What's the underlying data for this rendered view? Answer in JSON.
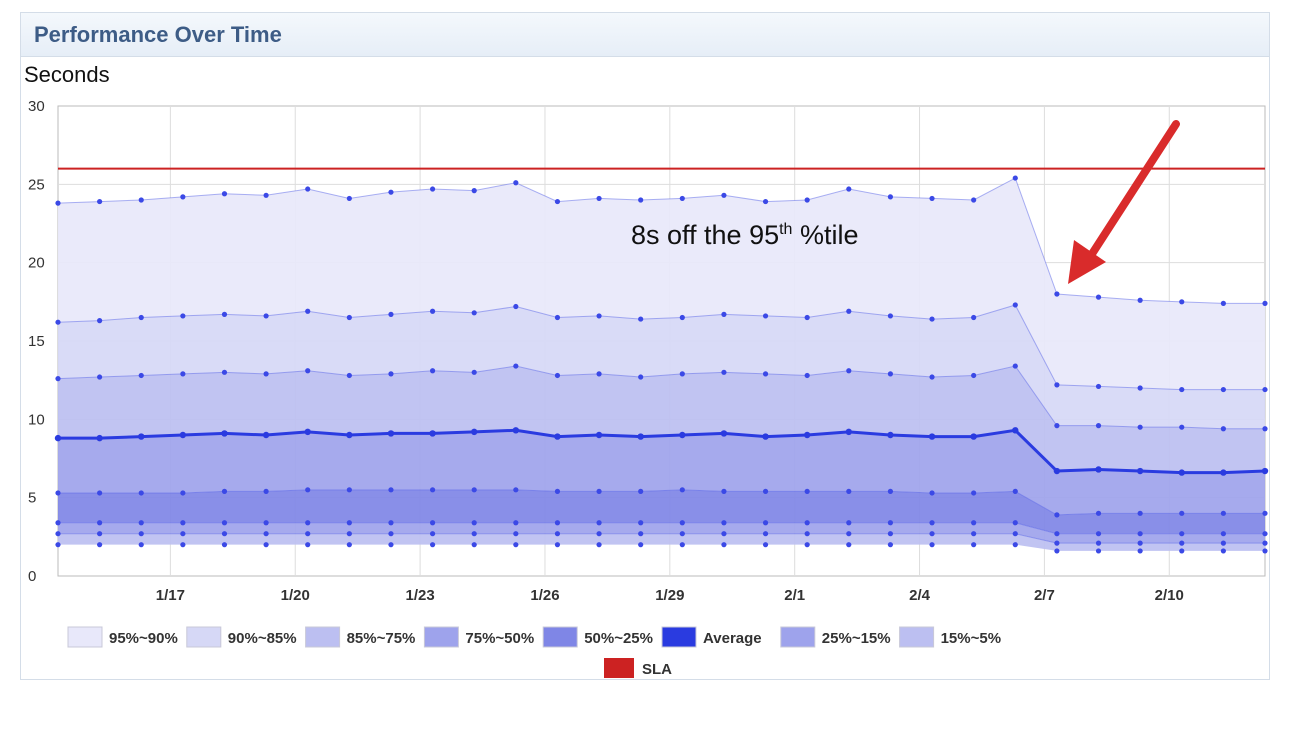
{
  "panel": {
    "title": "Performance Over Time"
  },
  "chart_data": {
    "type": "area",
    "title": "Performance Over Time",
    "ylabel": "Seconds",
    "xlabel": "",
    "ylim": [
      0,
      30
    ],
    "yticks": [
      0,
      5,
      10,
      15,
      20,
      25,
      30
    ],
    "xlim": [
      0,
      29
    ],
    "x_tick_labels": [
      {
        "x": 2.7,
        "label": "1/17"
      },
      {
        "x": 5.7,
        "label": "1/20"
      },
      {
        "x": 8.7,
        "label": "1/23"
      },
      {
        "x": 11.7,
        "label": "1/26"
      },
      {
        "x": 14.7,
        "label": "1/29"
      },
      {
        "x": 17.7,
        "label": "2/1"
      },
      {
        "x": 20.7,
        "label": "2/4"
      },
      {
        "x": 23.7,
        "label": "2/7"
      },
      {
        "x": 26.7,
        "label": "2/10"
      }
    ],
    "grid": true,
    "legend_position": "bottom",
    "x": [
      0,
      1,
      2,
      3,
      4,
      5,
      6,
      7,
      8,
      9,
      10,
      11,
      12,
      13,
      14,
      15,
      16,
      17,
      18,
      19,
      20,
      21,
      22,
      23,
      24,
      25,
      26,
      27,
      28,
      29
    ],
    "bands": [
      {
        "name": "95%~90%",
        "color": "#e8e8fa",
        "upper": [
          23.8,
          23.9,
          24.0,
          24.2,
          24.4,
          24.3,
          24.7,
          24.1,
          24.5,
          24.7,
          24.6,
          25.1,
          23.9,
          24.1,
          24.0,
          24.1,
          24.3,
          23.9,
          24.0,
          24.7,
          24.2,
          24.1,
          24.0,
          25.4,
          18.0,
          17.8,
          17.6,
          17.5,
          17.4,
          17.4
        ],
        "lower": [
          16.2,
          16.3,
          16.5,
          16.6,
          16.7,
          16.6,
          16.9,
          16.5,
          16.7,
          16.9,
          16.8,
          17.2,
          16.5,
          16.6,
          16.4,
          16.5,
          16.7,
          16.6,
          16.5,
          16.9,
          16.6,
          16.4,
          16.5,
          17.3,
          12.2,
          12.1,
          12.0,
          11.9,
          11.9,
          11.9
        ]
      },
      {
        "name": "90%~85%",
        "color": "#d6d8f6",
        "upper": [
          16.2,
          16.3,
          16.5,
          16.6,
          16.7,
          16.6,
          16.9,
          16.5,
          16.7,
          16.9,
          16.8,
          17.2,
          16.5,
          16.6,
          16.4,
          16.5,
          16.7,
          16.6,
          16.5,
          16.9,
          16.6,
          16.4,
          16.5,
          17.3,
          12.2,
          12.1,
          12.0,
          11.9,
          11.9,
          11.9
        ],
        "lower": [
          12.6,
          12.7,
          12.8,
          12.9,
          13.0,
          12.9,
          13.1,
          12.8,
          12.9,
          13.1,
          13.0,
          13.4,
          12.8,
          12.9,
          12.7,
          12.9,
          13.0,
          12.9,
          12.8,
          13.1,
          12.9,
          12.7,
          12.8,
          13.4,
          9.6,
          9.6,
          9.5,
          9.5,
          9.4,
          9.4
        ]
      },
      {
        "name": "85%~75%",
        "color": "#bcbff1",
        "upper": [
          12.6,
          12.7,
          12.8,
          12.9,
          13.0,
          12.9,
          13.1,
          12.8,
          12.9,
          13.1,
          13.0,
          13.4,
          12.8,
          12.9,
          12.7,
          12.9,
          13.0,
          12.9,
          12.8,
          13.1,
          12.9,
          12.7,
          12.8,
          13.4,
          9.6,
          9.6,
          9.5,
          9.5,
          9.4,
          9.4
        ],
        "lower": [
          8.8,
          8.8,
          8.9,
          9.0,
          9.1,
          9.0,
          9.2,
          9.0,
          9.1,
          9.1,
          9.2,
          9.3,
          8.9,
          9.0,
          8.9,
          9.0,
          9.1,
          8.9,
          9.0,
          9.2,
          9.0,
          8.9,
          8.9,
          9.3,
          6.7,
          6.8,
          6.7,
          6.6,
          6.6,
          6.7
        ]
      },
      {
        "name": "75%~50%",
        "color": "#9ea3ec",
        "upper": [
          8.8,
          8.8,
          8.9,
          9.0,
          9.1,
          9.0,
          9.2,
          9.0,
          9.1,
          9.1,
          9.2,
          9.3,
          8.9,
          9.0,
          8.9,
          9.0,
          9.1,
          8.9,
          9.0,
          9.2,
          9.0,
          8.9,
          8.9,
          9.3,
          6.7,
          6.8,
          6.7,
          6.6,
          6.6,
          6.7
        ],
        "lower": [
          5.3,
          5.3,
          5.3,
          5.3,
          5.4,
          5.4,
          5.5,
          5.5,
          5.5,
          5.5,
          5.5,
          5.5,
          5.4,
          5.4,
          5.4,
          5.5,
          5.4,
          5.4,
          5.4,
          5.4,
          5.4,
          5.3,
          5.3,
          5.4,
          3.9,
          4.0,
          4.0,
          4.0,
          4.0,
          4.0
        ]
      },
      {
        "name": "50%~25%",
        "color": "#7f86e6",
        "upper": [
          5.3,
          5.3,
          5.3,
          5.3,
          5.4,
          5.4,
          5.5,
          5.5,
          5.5,
          5.5,
          5.5,
          5.5,
          5.4,
          5.4,
          5.4,
          5.5,
          5.4,
          5.4,
          5.4,
          5.4,
          5.4,
          5.3,
          5.3,
          5.4,
          3.9,
          4.0,
          4.0,
          4.0,
          4.0,
          4.0
        ],
        "lower": [
          3.4,
          3.4,
          3.4,
          3.4,
          3.4,
          3.4,
          3.4,
          3.4,
          3.4,
          3.4,
          3.4,
          3.4,
          3.4,
          3.4,
          3.4,
          3.4,
          3.4,
          3.4,
          3.4,
          3.4,
          3.4,
          3.4,
          3.4,
          3.4,
          2.7,
          2.7,
          2.7,
          2.7,
          2.7,
          2.7
        ]
      },
      {
        "name": "25%~15%",
        "color": "#9ea3ec",
        "upper": [
          3.4,
          3.4,
          3.4,
          3.4,
          3.4,
          3.4,
          3.4,
          3.4,
          3.4,
          3.4,
          3.4,
          3.4,
          3.4,
          3.4,
          3.4,
          3.4,
          3.4,
          3.4,
          3.4,
          3.4,
          3.4,
          3.4,
          3.4,
          3.4,
          2.7,
          2.7,
          2.7,
          2.7,
          2.7,
          2.7
        ],
        "lower": [
          2.7,
          2.7,
          2.7,
          2.7,
          2.7,
          2.7,
          2.7,
          2.7,
          2.7,
          2.7,
          2.7,
          2.7,
          2.7,
          2.7,
          2.7,
          2.7,
          2.7,
          2.7,
          2.7,
          2.7,
          2.7,
          2.7,
          2.7,
          2.7,
          2.1,
          2.1,
          2.1,
          2.1,
          2.1,
          2.1
        ]
      },
      {
        "name": "15%~5%",
        "color": "#bcbff1",
        "upper": [
          2.7,
          2.7,
          2.7,
          2.7,
          2.7,
          2.7,
          2.7,
          2.7,
          2.7,
          2.7,
          2.7,
          2.7,
          2.7,
          2.7,
          2.7,
          2.7,
          2.7,
          2.7,
          2.7,
          2.7,
          2.7,
          2.7,
          2.7,
          2.7,
          2.1,
          2.1,
          2.1,
          2.1,
          2.1,
          2.1
        ],
        "lower": [
          2.0,
          2.0,
          2.0,
          2.0,
          2.0,
          2.0,
          2.0,
          2.0,
          2.0,
          2.0,
          2.0,
          2.0,
          2.0,
          2.0,
          2.0,
          2.0,
          2.0,
          2.0,
          2.0,
          2.0,
          2.0,
          2.0,
          2.0,
          2.0,
          1.6,
          1.6,
          1.6,
          1.6,
          1.6,
          1.6
        ]
      }
    ],
    "series": [
      {
        "name": "Average",
        "color": "#2a3be0",
        "values": [
          8.8,
          8.8,
          8.9,
          9.0,
          9.1,
          9.0,
          9.2,
          9.0,
          9.1,
          9.1,
          9.2,
          9.3,
          8.9,
          9.0,
          8.9,
          9.0,
          9.1,
          8.9,
          9.0,
          9.2,
          9.0,
          8.9,
          8.9,
          9.3,
          6.7,
          6.8,
          6.7,
          6.6,
          6.6,
          6.7
        ]
      },
      {
        "name": "SLA",
        "color": "#cc2222",
        "values": [
          26,
          26,
          26,
          26,
          26,
          26,
          26,
          26,
          26,
          26,
          26,
          26,
          26,
          26,
          26,
          26,
          26,
          26,
          26,
          26,
          26,
          26,
          26,
          26,
          26,
          26,
          26,
          26,
          26,
          26
        ]
      }
    ],
    "legend": [
      {
        "name": "95%~90%",
        "color": "#e8e8fa"
      },
      {
        "name": "90%~85%",
        "color": "#d6d8f6"
      },
      {
        "name": "85%~75%",
        "color": "#bcbff1"
      },
      {
        "name": "75%~50%",
        "color": "#9ea3ec"
      },
      {
        "name": "50%~25%",
        "color": "#7f86e6"
      },
      {
        "name": "Average",
        "color": "#2a3be0"
      },
      {
        "name": "25%~15%",
        "color": "#9ea3ec"
      },
      {
        "name": "15%~5%",
        "color": "#bcbff1"
      },
      {
        "name": "SLA",
        "color": "#cc2222"
      }
    ],
    "annotations": [
      {
        "text_main": "8s off the 95",
        "text_sup": "th",
        "text_tail": " %tile",
        "x": 16.5,
        "y": 21.2
      }
    ],
    "arrow_color": "#d92b2b"
  }
}
